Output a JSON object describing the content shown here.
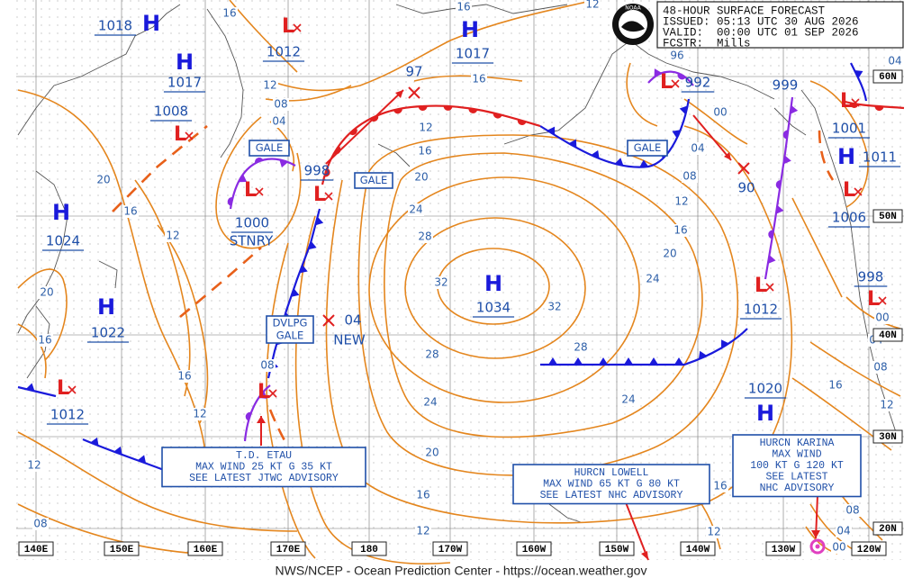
{
  "header": {
    "title": "48-HOUR SURFACE FORECAST",
    "issued": "ISSUED: 05:13 UTC 30 AUG 2026",
    "valid": "VALID:  00:00 UTC 01 SEP 2026",
    "forecaster": "FCSTR:  Mills"
  },
  "centers": [
    {
      "symbol": "H",
      "pressure": "1018"
    },
    {
      "symbol": "L",
      "pressure": "1012"
    },
    {
      "symbol": "H",
      "pressure": "1017"
    },
    {
      "symbol": "L",
      "pressure": "1008"
    },
    {
      "symbol": "H",
      "pressure": "1024"
    },
    {
      "symbol": "H",
      "pressure": "1022"
    },
    {
      "symbol": "L",
      "pressure": "1000"
    },
    {
      "symbol": "L",
      "pressure": "998"
    },
    {
      "symbol": "H",
      "pressure": "1017"
    },
    {
      "symbol": "L",
      "pressure": "992"
    },
    {
      "symbol": "H",
      "pressure": "1034"
    },
    {
      "symbol": "L",
      "pressure": "1001"
    },
    {
      "symbol": "H",
      "pressure": "1011"
    },
    {
      "symbol": "L",
      "pressure": "1006"
    },
    {
      "symbol": "L",
      "pressure": "998"
    },
    {
      "symbol": "L",
      "pressure": "1012"
    },
    {
      "symbol": "H",
      "pressure": "1020"
    },
    {
      "symbol": "L",
      "pressure": "1012"
    },
    {
      "symbol": "L",
      "pressure": "999"
    }
  ],
  "stationary_note": "STNRY",
  "new_lows": [
    {
      "pressure": "97"
    },
    {
      "pressure": "90"
    },
    {
      "pressure": "04",
      "note": "NEW"
    }
  ],
  "isobar_labels": [
    "16",
    "12",
    "16",
    "12",
    "08",
    "04",
    "20",
    "16",
    "12",
    "20",
    "16",
    "16",
    "12",
    "12",
    "08",
    "12",
    "16",
    "20",
    "24",
    "28",
    "32",
    "32",
    "28",
    "24",
    "24",
    "20",
    "16",
    "12",
    "08",
    "04",
    "00",
    "28",
    "24",
    "20",
    "16",
    "12",
    "16",
    "12",
    "16",
    "12",
    "08",
    "04",
    "00",
    "08",
    "08",
    "04",
    "00",
    "96",
    "04",
    "16"
  ],
  "warnings": [
    "GALE",
    "GALE",
    "GALE",
    "DVLPG",
    "GALE"
  ],
  "advisories": [
    {
      "lines": [
        "T.D. ETAU",
        "MAX WIND 25 KT G 35 KT",
        "SEE LATEST JTWC ADVISORY"
      ]
    },
    {
      "lines": [
        "HURCN LOWELL",
        "MAX WIND 65 KT G 80 KT",
        "SEE LATEST NHC ADVISORY"
      ]
    },
    {
      "lines": [
        "HURCN KARINA",
        "MAX WIND",
        "100 KT G 120 KT",
        "SEE LATEST",
        "NHC ADVISORY"
      ]
    }
  ],
  "longitudes": [
    "140E",
    "150E",
    "160E",
    "170E",
    "180",
    "170W",
    "160W",
    "150W",
    "140W",
    "130W",
    "120W"
  ],
  "latitudes": [
    "60N",
    "50N",
    "40N",
    "30N",
    "20N"
  ],
  "logo": "NOAA",
  "footer": "NWS/NCEP - Ocean Prediction Center - https://ocean.weather.gov"
}
